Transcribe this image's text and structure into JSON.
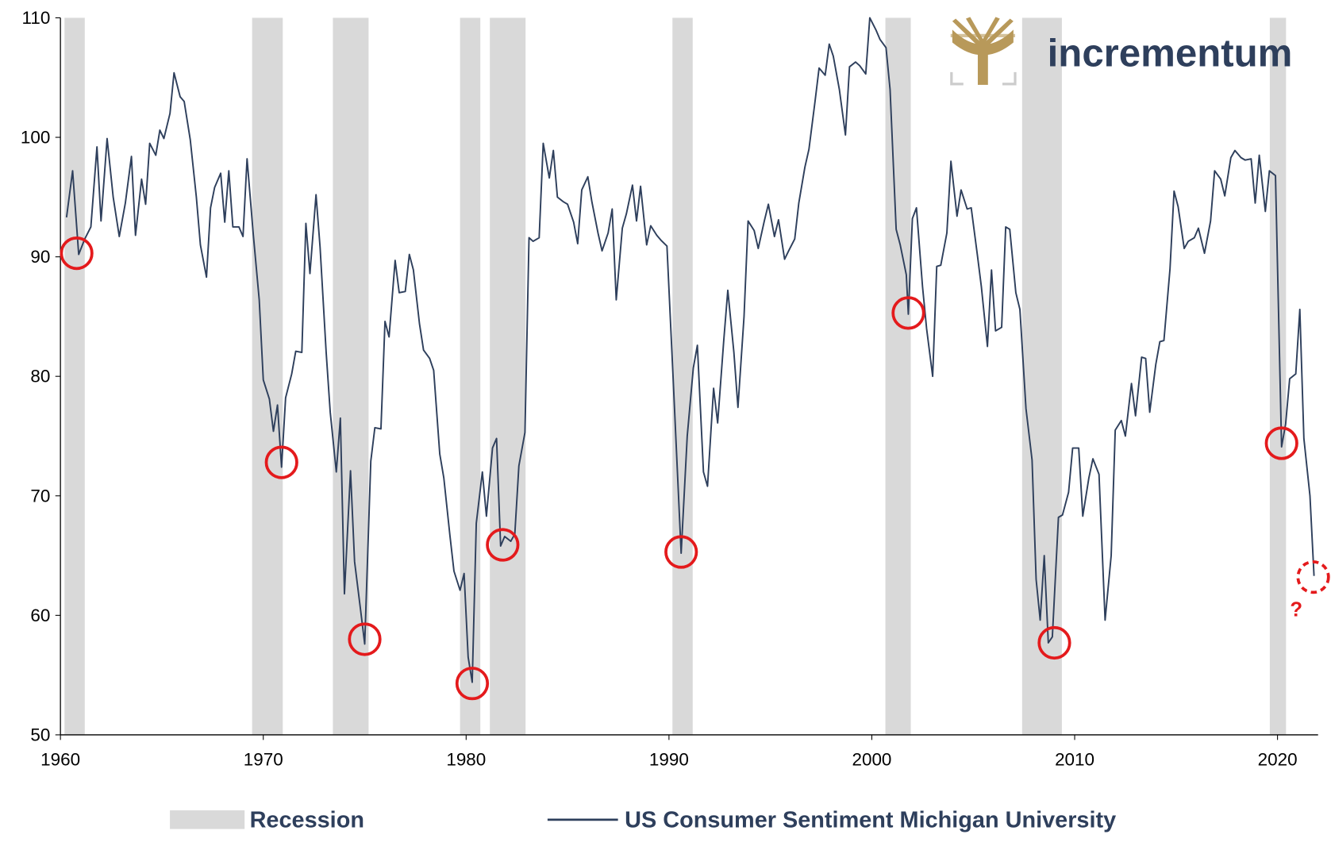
{
  "chart_data": {
    "type": "line",
    "logo_text": "incrementum",
    "xlim": [
      1960,
      2022
    ],
    "xticks": [
      1960,
      1970,
      1980,
      1990,
      2000,
      2010,
      2020
    ],
    "ylim": [
      50,
      110
    ],
    "yticks": [
      50,
      60,
      70,
      80,
      90,
      100,
      110
    ],
    "recessions": {
      "name": "Recession",
      "color": "#d9d9d9",
      "periods": [
        [
          1960.2,
          1961.2
        ],
        [
          1969.45,
          1970.96
        ],
        [
          1973.43,
          1975.19
        ],
        [
          1979.7,
          1980.7
        ],
        [
          1981.17,
          1982.93
        ],
        [
          1990.17,
          1991.17
        ],
        [
          2000.67,
          2001.92
        ],
        [
          2007.41,
          2009.37
        ],
        [
          2019.62,
          2020.42
        ]
      ]
    },
    "x": [
      1960.3,
      1960.6,
      1960.9,
      1961.2,
      1961.5,
      1961.8,
      1962.0,
      1962.3,
      1962.6,
      1962.9,
      1963.2,
      1963.5,
      1963.7,
      1964.0,
      1964.2,
      1964.4,
      1964.7,
      1964.9,
      1965.1,
      1965.4,
      1965.6,
      1965.9,
      1966.1,
      1966.4,
      1966.7,
      1966.9,
      1967.2,
      1967.4,
      1967.6,
      1967.9,
      1968.1,
      1968.3,
      1968.5,
      1968.8,
      1969.0,
      1969.2,
      1969.5,
      1969.8,
      1970.0,
      1970.3,
      1970.5,
      1970.7,
      1970.9,
      1971.1,
      1971.4,
      1971.6,
      1971.9,
      1972.1,
      1972.3,
      1972.6,
      1972.8,
      1973.1,
      1973.3,
      1973.6,
      1973.8,
      1974.0,
      1974.3,
      1974.5,
      1974.8,
      1975.0,
      1975.3,
      1975.5,
      1975.8,
      1976.0,
      1976.2,
      1976.5,
      1976.7,
      1977.0,
      1977.2,
      1977.4,
      1977.7,
      1977.9,
      1978.2,
      1978.4,
      1978.7,
      1978.9,
      1979.2,
      1979.4,
      1979.7,
      1979.9,
      1980.1,
      1980.3,
      1980.5,
      1980.8,
      1981.0,
      1981.3,
      1981.5,
      1981.7,
      1981.9,
      1982.2,
      1982.4,
      1982.6,
      1982.9,
      1983.1,
      1983.3,
      1983.6,
      1983.8,
      1984.1,
      1984.3,
      1984.5,
      1984.8,
      1985.0,
      1985.3,
      1985.5,
      1985.7,
      1986.0,
      1986.2,
      1986.5,
      1986.7,
      1987.0,
      1987.2,
      1987.4,
      1987.7,
      1987.9,
      1988.2,
      1988.4,
      1988.6,
      1988.9,
      1989.1,
      1989.4,
      1989.6,
      1989.9,
      1990.2,
      1990.6,
      1990.9,
      1991.2,
      1991.4,
      1991.7,
      1991.9,
      1992.2,
      1992.4,
      1992.7,
      1992.9,
      1993.2,
      1993.4,
      1993.7,
      1993.9,
      1994.2,
      1994.4,
      1994.7,
      1994.9,
      1995.2,
      1995.4,
      1995.7,
      1995.9,
      1996.2,
      1996.4,
      1996.7,
      1996.9,
      1997.2,
      1997.4,
      1997.7,
      1997.9,
      1998.1,
      1998.4,
      1998.7,
      1998.9,
      1999.2,
      1999.4,
      1999.7,
      1999.9,
      2000.2,
      2000.4,
      2000.7,
      2000.9,
      2001.2,
      2001.4,
      2001.7,
      2001.8,
      2002.0,
      2002.2,
      2002.5,
      2002.7,
      2003.0,
      2003.2,
      2003.4,
      2003.7,
      2003.9,
      2004.2,
      2004.4,
      2004.7,
      2004.9,
      2005.2,
      2005.4,
      2005.7,
      2005.9,
      2006.1,
      2006.4,
      2006.6,
      2006.8,
      2007.1,
      2007.3,
      2007.6,
      2007.9,
      2008.1,
      2008.3,
      2008.5,
      2008.7,
      2008.9,
      2009.2,
      2009.4,
      2009.7,
      2009.9,
      2010.2,
      2010.4,
      2010.7,
      2010.9,
      2011.2,
      2011.5,
      2011.8,
      2012.0,
      2012.3,
      2012.5,
      2012.8,
      2013.0,
      2013.3,
      2013.5,
      2013.7,
      2014.0,
      2014.2,
      2014.4,
      2014.7,
      2014.9,
      2015.1,
      2015.4,
      2015.6,
      2015.9,
      2016.1,
      2016.4,
      2016.7,
      2016.9,
      2017.2,
      2017.4,
      2017.7,
      2017.9,
      2018.2,
      2018.4,
      2018.7,
      2018.9,
      2019.1,
      2019.4,
      2019.6,
      2019.9,
      2020.2,
      2020.4,
      2020.6,
      2020.9,
      2021.1,
      2021.3,
      2021.6,
      2021.8
    ],
    "series": [
      {
        "name": "US Consumer Sentiment Michigan University",
        "color": "#2e3f5c",
        "values": [
          93.3,
          97.2,
          90.2,
          91.5,
          92.5,
          99.2,
          93.0,
          99.9,
          95,
          91.7,
          94.5,
          98.4,
          91.8,
          96.5,
          94.4,
          99.5,
          98.5,
          100.6,
          99.9,
          102,
          105.4,
          103.4,
          103,
          99.8,
          95,
          91,
          88.3,
          94.1,
          95.8,
          97,
          92.9,
          97.2,
          92.5,
          92.5,
          91.7,
          98.2,
          92,
          86.4,
          79.7,
          78.1,
          75.4,
          77.6,
          72.4,
          78.2,
          80.2,
          82.1,
          82,
          92.8,
          88.6,
          95.2,
          90.8,
          82,
          77,
          72,
          76.5,
          61.8,
          72.1,
          64.5,
          60.4,
          57.6,
          72.9,
          75.7,
          75.6,
          84.6,
          83.3,
          89.7,
          87,
          87.1,
          90.2,
          88.9,
          84.4,
          82.2,
          81.5,
          80.5,
          73.5,
          71.5,
          66.7,
          63.7,
          62.1,
          63.5,
          56.5,
          54.4,
          67.7,
          72,
          68.3,
          74,
          74.8,
          65.8,
          66.6,
          66.2,
          66.8,
          72.5,
          75.3,
          91.6,
          91.3,
          91.6,
          99.5,
          96.6,
          98.9,
          95,
          94.6,
          94.4,
          92.9,
          91.1,
          95.6,
          96.7,
          94.6,
          92,
          90.5,
          92,
          94,
          86.4,
          92.4,
          93.6,
          96,
          93,
          95.9,
          91,
          92.6,
          91.8,
          91.4,
          90.9,
          80,
          65.2,
          75,
          80.7,
          82.6,
          72,
          70.8,
          79,
          76.1,
          83,
          87.2,
          82,
          77.4,
          85,
          93,
          92.2,
          90.7,
          93,
          94.4,
          91.7,
          93.1,
          89.8,
          90.5,
          91.5,
          94.5,
          97.5,
          99,
          103,
          105.8,
          105.2,
          107.8,
          106.8,
          104,
          100.2,
          105.9,
          106.3,
          106,
          105.3,
          110,
          109,
          108.2,
          107.5,
          104,
          92.3,
          91,
          88.5,
          85.2,
          93.2,
          94.1,
          87.5,
          84,
          80,
          89.2,
          89.3,
          92,
          98,
          93.4,
          95.6,
          94,
          94.1,
          90.2,
          87.5,
          82.5,
          88.9,
          83.8,
          84.1,
          92.5,
          92.3,
          87,
          85.6,
          77.3,
          73,
          63,
          59.6,
          65,
          57.7,
          58.2,
          68.2,
          68.4,
          70.3,
          74,
          74,
          68.3,
          71.5,
          73.1,
          71.8,
          59.6,
          65,
          75.5,
          76.3,
          75,
          79.4,
          76.7,
          81.6,
          81.5,
          77,
          81,
          82.9,
          83,
          89,
          95.5,
          94.2,
          90.7,
          91.3,
          91.6,
          92.4,
          90.3,
          93,
          97.2,
          96.5,
          95.1,
          98.3,
          98.9,
          98.3,
          98.1,
          98.2,
          94.5,
          98.5,
          93.8,
          97.2,
          96.8,
          74.1,
          76,
          79.8,
          80.2,
          85.6,
          74.8,
          70,
          63.3
        ]
      }
    ],
    "circled_points": [
      {
        "x": 1960.8,
        "y": 90.3
      },
      {
        "x": 1970.9,
        "y": 72.8
      },
      {
        "x": 1975.0,
        "y": 58
      },
      {
        "x": 1980.3,
        "y": 54.3
      },
      {
        "x": 1981.8,
        "y": 65.9
      },
      {
        "x": 1990.6,
        "y": 65.3
      },
      {
        "x": 2001.8,
        "y": 85.3
      },
      {
        "x": 2009.0,
        "y": 57.7
      },
      {
        "x": 2020.2,
        "y": 74.4
      },
      {
        "x": 2021.76,
        "y": 63.2,
        "style": "dashed",
        "label": "?"
      }
    ],
    "circle_color": "#e41a1c"
  }
}
